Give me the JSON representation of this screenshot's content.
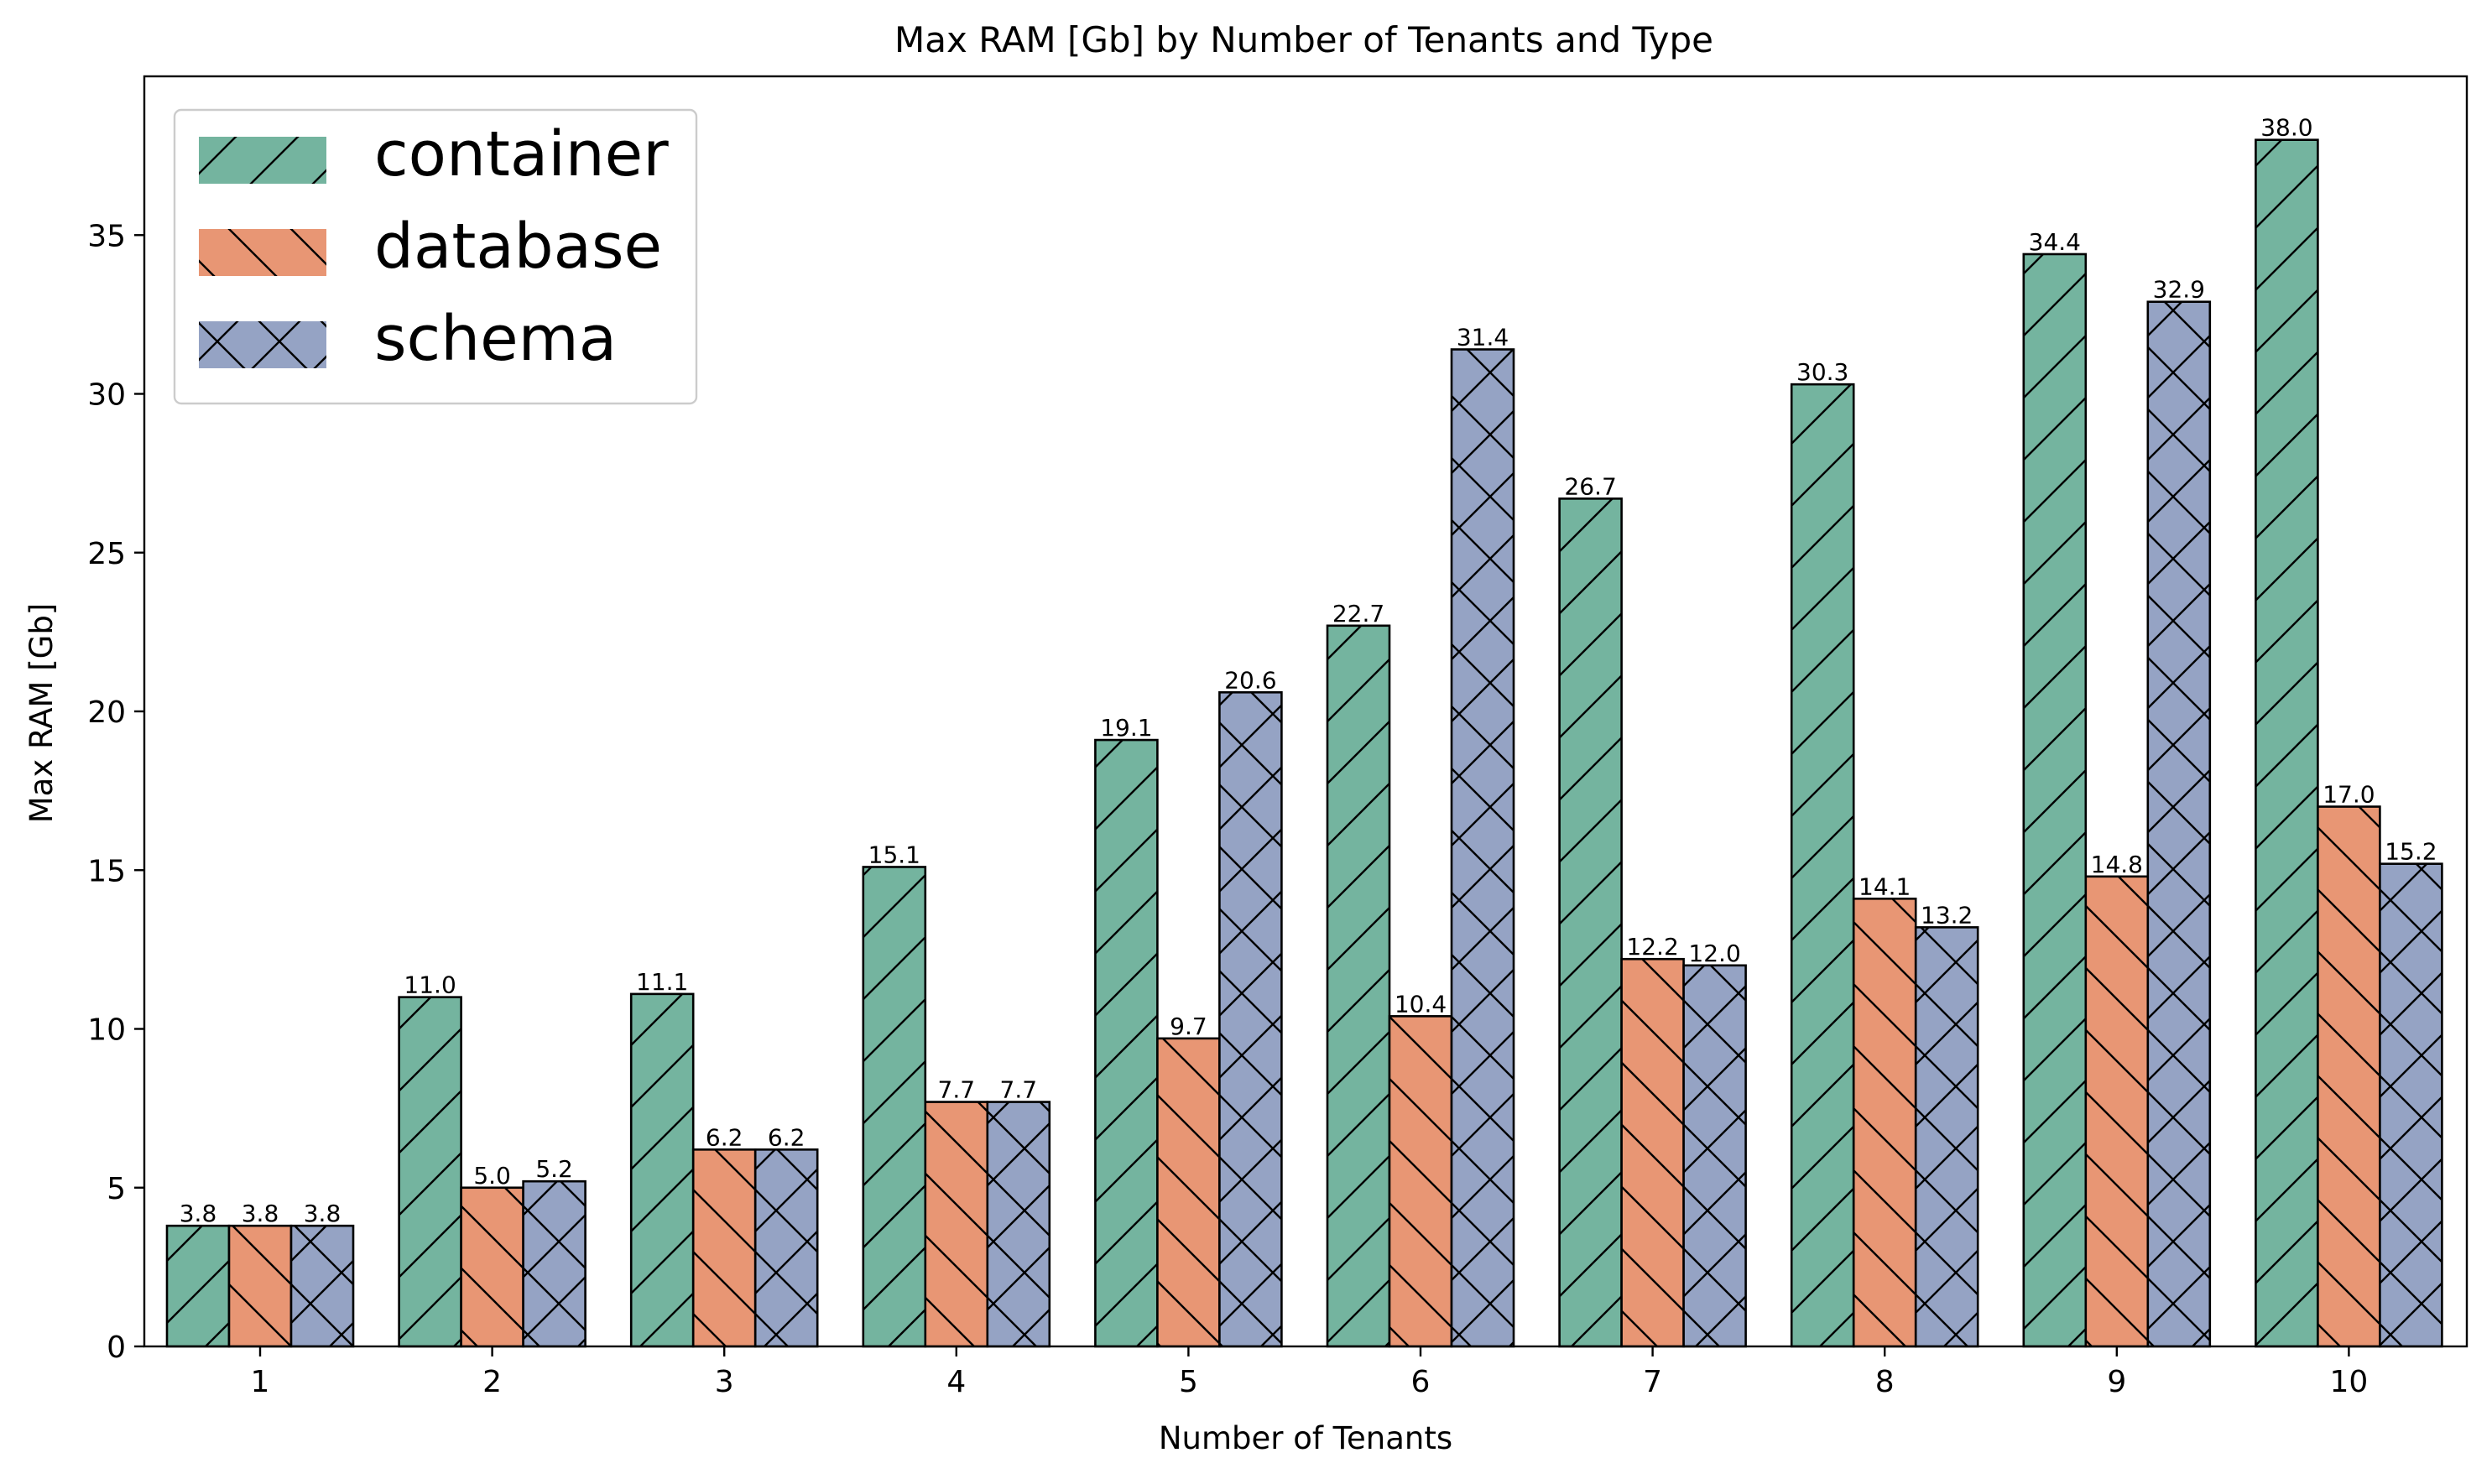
{
  "chart_data": {
    "type": "bar",
    "title": "Max RAM [Gb] by Number of Tenants and Type",
    "xlabel": "Number of Tenants",
    "ylabel": "Max RAM [Gb]",
    "categories": [
      "1",
      "2",
      "3",
      "4",
      "5",
      "6",
      "7",
      "8",
      "9",
      "10"
    ],
    "ylim": [
      0,
      40
    ],
    "yticks": [
      0,
      5,
      10,
      15,
      20,
      25,
      30,
      35
    ],
    "grid": false,
    "legend_position": "top-left",
    "series": [
      {
        "name": "container",
        "color": "#74b49f",
        "hatch": "forward-diagonal",
        "values": [
          3.8,
          11.0,
          11.1,
          15.1,
          19.1,
          22.7,
          26.7,
          30.3,
          34.4,
          38.0
        ],
        "labels": [
          "3.8",
          "11.0",
          "11.1",
          "15.1",
          "19.1",
          "22.7",
          "26.7",
          "30.3",
          "34.4",
          "38.0"
        ]
      },
      {
        "name": "database",
        "color": "#e89674",
        "hatch": "back-diagonal",
        "values": [
          3.8,
          5.0,
          6.2,
          7.7,
          9.7,
          10.4,
          12.2,
          14.1,
          14.8,
          17.0
        ],
        "labels": [
          "3.8",
          "5.0",
          "6.2",
          "7.7",
          "9.7",
          "10.4",
          "12.2",
          "14.1",
          "14.8",
          "17.0"
        ]
      },
      {
        "name": "schema",
        "color": "#95a3c4",
        "hatch": "cross",
        "values": [
          3.8,
          5.2,
          6.2,
          7.7,
          20.6,
          31.4,
          12.0,
          13.2,
          32.9,
          15.2
        ],
        "labels": [
          "3.8",
          "5.2",
          "6.2",
          "7.7",
          "20.6",
          "31.4",
          "12.0",
          "13.2",
          "32.9",
          "15.2"
        ]
      }
    ]
  }
}
